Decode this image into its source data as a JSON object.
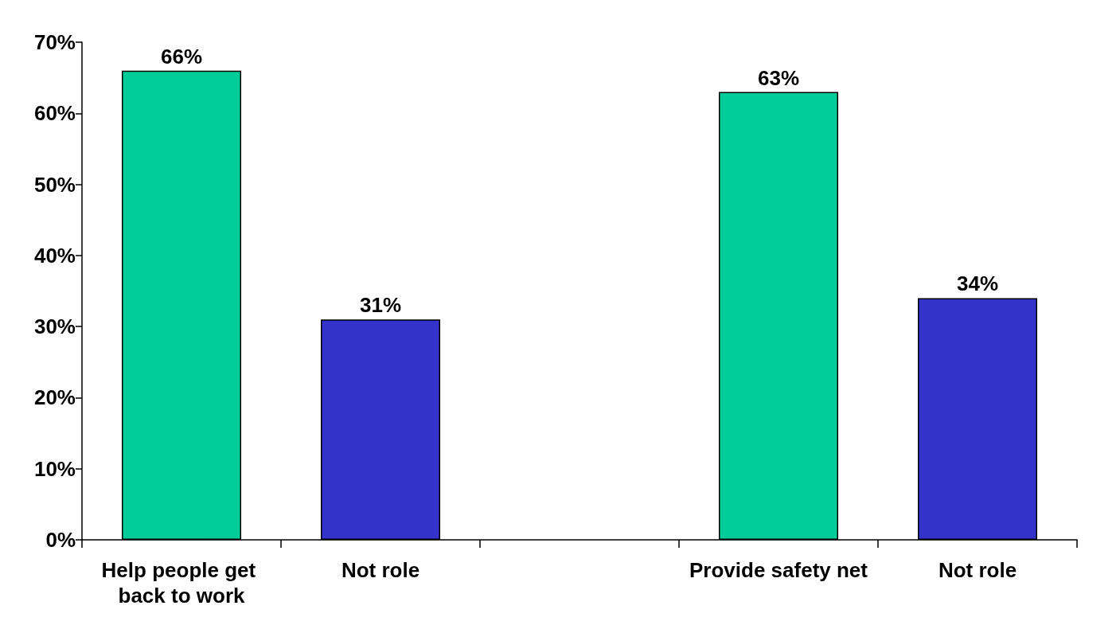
{
  "chart_data": {
    "type": "bar",
    "categories": [
      "Help people get back to work",
      "Not role",
      null,
      "Provide safety net",
      "Not role"
    ],
    "values": [
      66,
      31,
      null,
      63,
      34
    ],
    "colors": [
      "#00cc99",
      "#3333cc",
      null,
      "#00cc99",
      "#3333cc"
    ],
    "value_labels": [
      "66%",
      "31%",
      null,
      "63%",
      "34%"
    ],
    "ylim": [
      0,
      70
    ],
    "yticks": [
      {
        "value": 0,
        "label": "0%"
      },
      {
        "value": 10,
        "label": "10%"
      },
      {
        "value": 20,
        "label": "20%"
      },
      {
        "value": 30,
        "label": "30%"
      },
      {
        "value": 40,
        "label": "40%"
      },
      {
        "value": 50,
        "label": "50%"
      },
      {
        "value": 60,
        "label": "60%"
      },
      {
        "value": 70,
        "label": "70%"
      }
    ],
    "grid": false
  }
}
